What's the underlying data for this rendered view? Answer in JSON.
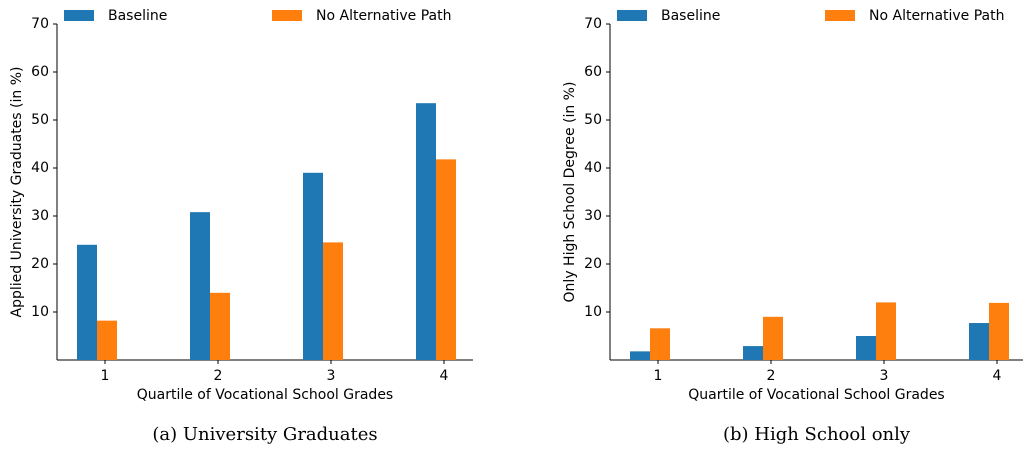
{
  "chart_data": [
    {
      "type": "bar",
      "caption": "(a) University Graduates",
      "xlabel": "Quartile of Vocational School Grades",
      "ylabel": "Applied University Graduates (in %)",
      "categories": [
        "1",
        "2",
        "3",
        "4"
      ],
      "series": [
        {
          "name": "Baseline",
          "color": "#1f77b4",
          "values": [
            24,
            30.8,
            39,
            53.5
          ]
        },
        {
          "name": "No Alternative Path",
          "color": "#ff7f0e",
          "values": [
            8.2,
            14,
            24.5,
            41.8
          ]
        }
      ],
      "ylim": [
        0,
        70
      ],
      "yticks": [
        10,
        20,
        30,
        40,
        50,
        60,
        70
      ]
    },
    {
      "type": "bar",
      "caption": "(b) High School only",
      "xlabel": "Quartile of Vocational School Grades",
      "ylabel": "Only High School Degree (in %)",
      "categories": [
        "1",
        "2",
        "3",
        "4"
      ],
      "series": [
        {
          "name": "Baseline",
          "color": "#1f77b4",
          "values": [
            1.8,
            2.9,
            5,
            7.7
          ]
        },
        {
          "name": "No Alternative Path",
          "color": "#ff7f0e",
          "values": [
            6.6,
            9,
            12,
            11.9
          ]
        }
      ],
      "ylim": [
        0,
        70
      ],
      "yticks": [
        10,
        20,
        30,
        40,
        50,
        60,
        70
      ]
    }
  ]
}
